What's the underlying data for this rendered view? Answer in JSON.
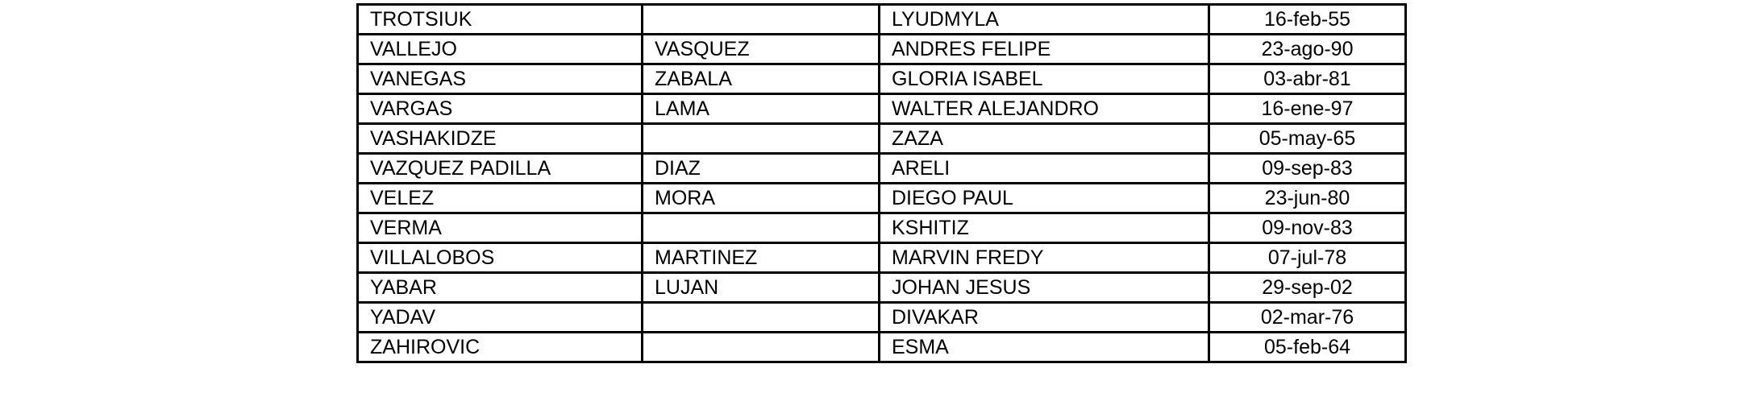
{
  "table": {
    "rows": [
      [
        "TROTSIUK",
        "",
        "LYUDMYLA",
        "16-feb-55"
      ],
      [
        "VALLEJO",
        "VASQUEZ",
        "ANDRES FELIPE",
        "23-ago-90"
      ],
      [
        "VANEGAS",
        "ZABALA",
        "GLORIA ISABEL",
        "03-abr-81"
      ],
      [
        "VARGAS",
        "LAMA",
        "WALTER ALEJANDRO",
        "16-ene-97"
      ],
      [
        "VASHAKIDZE",
        "",
        "ZAZA",
        "05-may-65"
      ],
      [
        "VAZQUEZ PADILLA",
        "DIAZ",
        "ARELI",
        "09-sep-83"
      ],
      [
        "VELEZ",
        "MORA",
        "DIEGO PAUL",
        "23-jun-80"
      ],
      [
        "VERMA",
        "",
        "KSHITIZ",
        "09-nov-83"
      ],
      [
        "VILLALOBOS",
        "MARTINEZ",
        "MARVIN FREDY",
        "07-jul-78"
      ],
      [
        "YABAR",
        "LUJAN",
        "JOHAN JESUS",
        "29-sep-02"
      ],
      [
        "YADAV",
        "",
        "DIVAKAR",
        "02-mar-76"
      ],
      [
        "ZAHIROVIC",
        "",
        "ESMA",
        "05-feb-64"
      ]
    ]
  }
}
